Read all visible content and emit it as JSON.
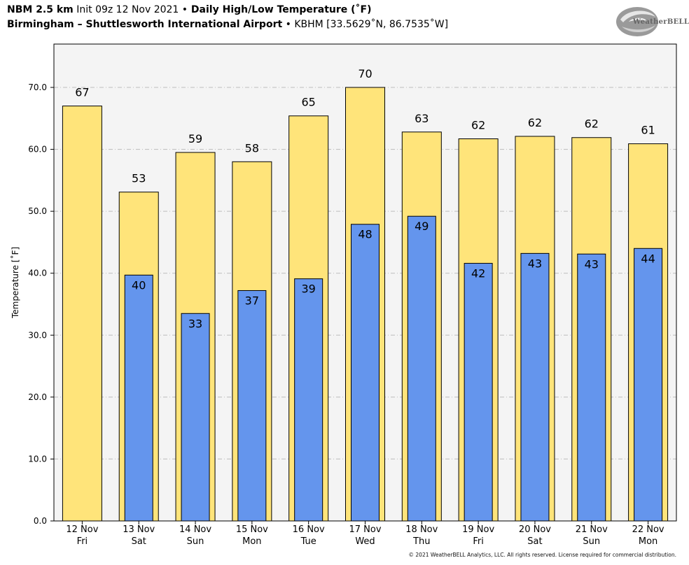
{
  "header": {
    "line1_bold_a": "NBM 2.5 km",
    "line1_init": " Init 09z 12 Nov 2021 ",
    "line1_bullet": "•",
    "line1_bold_b": " Daily High/Low Temperature (˚F)",
    "line2_bold": "Birmingham – Shuttlesworth International Airport",
    "line2_rest": " • KBHM [33.5629˚N, 86.7535˚W]"
  },
  "logo": {
    "text": "WeatherBELL",
    "icon": "swirl-logo-icon"
  },
  "footer": {
    "copyright": "© 2021 WeatherBELL Analytics, LLC. All rights reserved. License required for commercial distribution."
  },
  "chart_data": {
    "type": "bar",
    "title": "Daily High/Low Temperature (˚F)",
    "ylabel": "Temperature [˚F]",
    "ylim": [
      0,
      77
    ],
    "yticks": [
      "0.0",
      "10.0",
      "20.0",
      "30.0",
      "40.0",
      "50.0",
      "60.0",
      "70.0"
    ],
    "grid": true,
    "categories": [
      [
        "12 Nov",
        "Fri"
      ],
      [
        "13 Nov",
        "Sat"
      ],
      [
        "14 Nov",
        "Sun"
      ],
      [
        "15 Nov",
        "Mon"
      ],
      [
        "16 Nov",
        "Tue"
      ],
      [
        "17 Nov",
        "Wed"
      ],
      [
        "18 Nov",
        "Thu"
      ],
      [
        "19 Nov",
        "Fri"
      ],
      [
        "20 Nov",
        "Sat"
      ],
      [
        "21 Nov",
        "Sun"
      ],
      [
        "22 Nov",
        "Mon"
      ]
    ],
    "series": [
      {
        "name": "High",
        "color": "#ffe47a",
        "values": [
          67.0,
          53.1,
          59.5,
          58.0,
          65.4,
          70.0,
          62.8,
          61.7,
          62.1,
          61.9,
          60.9
        ],
        "labels": [
          "67",
          "53",
          "59",
          "58",
          "65",
          "70",
          "63",
          "62",
          "62",
          "62",
          "61"
        ]
      },
      {
        "name": "Low",
        "color": "#6495ed",
        "values": [
          null,
          39.7,
          33.5,
          37.2,
          39.1,
          47.9,
          49.2,
          41.6,
          43.2,
          43.1,
          44.0
        ],
        "labels": [
          "",
          "40",
          "33",
          "37",
          "39",
          "48",
          "49",
          "42",
          "43",
          "43",
          "44"
        ]
      }
    ]
  }
}
